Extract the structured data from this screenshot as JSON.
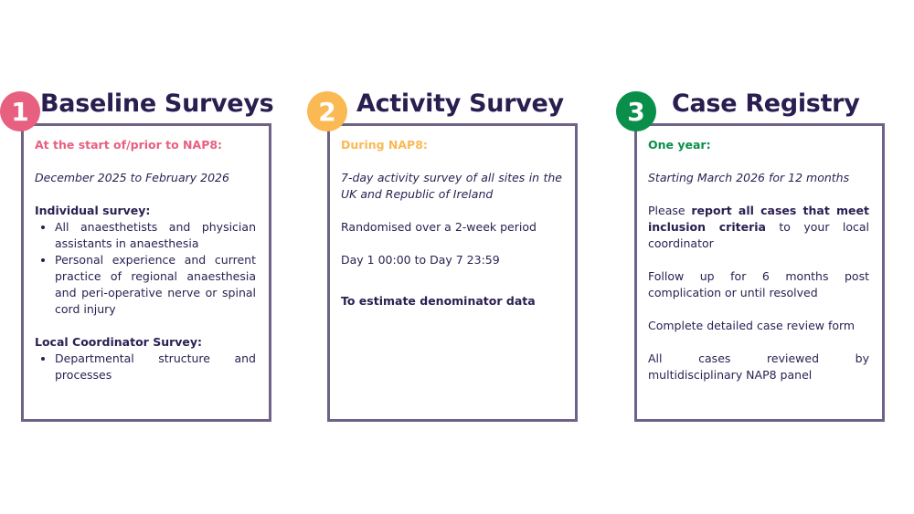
{
  "colors": {
    "pink": "#e8607f",
    "orange": "#fbb954",
    "green": "#0a8f4a",
    "navy": "#2a1e50",
    "border": "#6e6386"
  },
  "columns": [
    {
      "number": "1",
      "title": "Baseline Surveys",
      "subtitle": "At the start of/prior to NAP8:",
      "dates": "December 2025 to February 2026",
      "individual_heading": "Individual survey:",
      "individual_items": [
        "All anaesthetists and physician assistants in anaesthesia",
        "Personal experience and current practice of regional anaesthesia and peri-operative nerve or spinal cord injury"
      ],
      "local_heading": "Local Coordinator Survey:",
      "local_items": [
        "Departmental structure and processes"
      ]
    },
    {
      "number": "2",
      "title": "Activity Survey",
      "subtitle": "During NAP8:",
      "dates": "7-day activity survey of all sites in the UK and Republic of Ireland",
      "lines": [
        "Randomised over a 2-week period",
        "Day 1 00:00 to Day 7 23:59"
      ],
      "purpose": "To estimate denominator data"
    },
    {
      "number": "3",
      "title": "Case Registry",
      "subtitle": "One year:",
      "dates": "Starting March 2026 for 12 months",
      "report_pre": "Please ",
      "report_bold": "report all cases that meet inclusion criteria",
      "report_post": " to your local coordinator",
      "lines": [
        "Follow up for 6 months post complication or until resolved",
        "Complete detailed case review form",
        "All cases reviewed by multidisciplinary NAP8 panel"
      ]
    }
  ]
}
